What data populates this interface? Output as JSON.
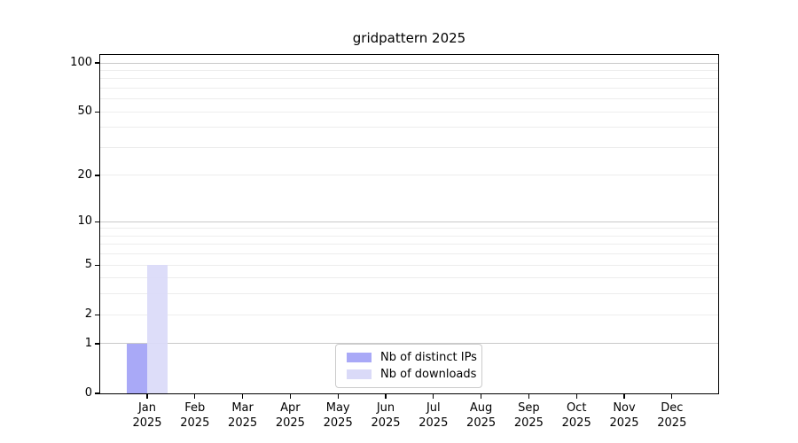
{
  "title": "gridpattern 2025",
  "chart_data": {
    "type": "bar",
    "title": "gridpattern 2025",
    "categories": [
      "Jan",
      "Feb",
      "Mar",
      "Apr",
      "May",
      "Jun",
      "Jul",
      "Aug",
      "Sep",
      "Oct",
      "Nov",
      "Dec"
    ],
    "category_year": "2025",
    "series": [
      {
        "name": "Nb of distinct IPs",
        "color": "#a9a9f7",
        "values": [
          1,
          0,
          0,
          0,
          0,
          0,
          0,
          0,
          0,
          0,
          0,
          0
        ]
      },
      {
        "name": "Nb of downloads",
        "color": "#dadaf8",
        "values": [
          5,
          0,
          0,
          0,
          0,
          0,
          0,
          0,
          0,
          0,
          0,
          0
        ]
      }
    ],
    "yscale": "log10(1+x)",
    "ylim": [
      0,
      111
    ],
    "yticks": [
      0,
      1,
      2,
      5,
      10,
      20,
      50,
      100
    ],
    "major_gridlines": [
      1,
      10,
      100
    ],
    "minor_gridlines": [
      2,
      3,
      4,
      5,
      6,
      7,
      8,
      9,
      20,
      30,
      40,
      50,
      60,
      70,
      80,
      90
    ],
    "grid": "horizontal",
    "legend_position": "lower center"
  },
  "legend": {
    "items": [
      {
        "label": "Nb of distinct IPs",
        "color": "#a9a9f7"
      },
      {
        "label": "Nb of downloads",
        "color": "#dadaf8"
      }
    ]
  },
  "colors": {
    "background": "#ffffff",
    "spine": "#000000",
    "text": "#000000",
    "major_grid": "#c9c9c9",
    "minor_grid": "#ededed",
    "legend_border": "#cccccc"
  }
}
